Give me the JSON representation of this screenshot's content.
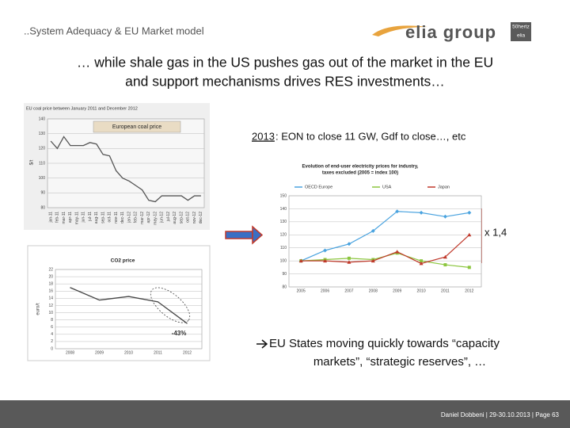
{
  "header": {
    "section": "..System Adequacy & EU Market model",
    "logo": "elia group",
    "badge_top": "50hertz",
    "badge_bottom": "elia"
  },
  "title": [
    "… while shale gas in the US pushes gas out of the market in the EU",
    "and support mechanisms drives RES investments…"
  ],
  "note_top": {
    "year": "2013",
    "text": ": EON to close 11 GW, Gdf to close…, etc"
  },
  "multiplier": "x 1,4",
  "conclusion": [
    "EU States moving quickly towards “capacity",
    "markets”, “strategic reserves”, …"
  ],
  "footer": "Daniel Dobbeni | 29-30.10.2013 | Page 63",
  "chart_data": [
    {
      "type": "line",
      "caption": "EU coal price between January 2011 and December 2012",
      "title": "European coal price",
      "ylabel": "$/t",
      "categories": [
        "jan-11",
        "feb-11",
        "mar-11",
        "apr-11",
        "may-11",
        "jun-11",
        "jul-11",
        "aug-11",
        "sep-11",
        "oct-11",
        "nov-11",
        "dec-11",
        "jan-12",
        "feb-12",
        "mar-12",
        "apr-12",
        "may-12",
        "jun-12",
        "jul-12",
        "aug-12",
        "sep-12",
        "oct-12",
        "nov-12",
        "dec-12"
      ],
      "values": [
        125,
        120,
        128,
        122,
        122,
        122,
        124,
        123,
        116,
        115,
        105,
        100,
        98,
        95,
        92,
        85,
        84,
        88,
        88,
        88,
        88,
        85,
        88,
        88
      ],
      "color": "#555555",
      "ylim": [
        80,
        140
      ],
      "yticks": [
        80,
        90,
        100,
        110,
        120,
        130,
        140
      ],
      "grid": true
    },
    {
      "type": "line",
      "title": "CO2 price",
      "ylabel": "euro/t",
      "annotation": "-43%",
      "categories": [
        "2008",
        "2009",
        "2010",
        "2011",
        "2012"
      ],
      "values": [
        17,
        13.5,
        14.5,
        13,
        7
      ],
      "color": "#444444",
      "ylim": [
        0,
        22
      ],
      "yticks": [
        0,
        2,
        4,
        6,
        8,
        10,
        12,
        14,
        16,
        18,
        20,
        22
      ],
      "grid": true
    },
    {
      "type": "line",
      "title": "Evolution of end-user electricity prices for industry,",
      "subtitle": "taxes excluded (2005 = index 100)",
      "categories": [
        "2005",
        "2006",
        "2007",
        "2008",
        "2009",
        "2010",
        "2011",
        "2012"
      ],
      "series": [
        {
          "name": "OECD Europe",
          "color": "#4aa3df",
          "marker": "diamond",
          "values": [
            100,
            108,
            113,
            123,
            138,
            137,
            134,
            137
          ]
        },
        {
          "name": "USA",
          "color": "#8cc63f",
          "marker": "square",
          "values": [
            100,
            101,
            102,
            101,
            106,
            100,
            97,
            95
          ]
        },
        {
          "name": "Japan",
          "color": "#c0392b",
          "marker": "triangle",
          "values": [
            100,
            100,
            99,
            100,
            107,
            98,
            103,
            120
          ]
        }
      ],
      "ylim": [
        80,
        150
      ],
      "yticks": [
        80,
        90,
        100,
        110,
        120,
        130,
        140,
        150
      ],
      "grid": true
    }
  ]
}
